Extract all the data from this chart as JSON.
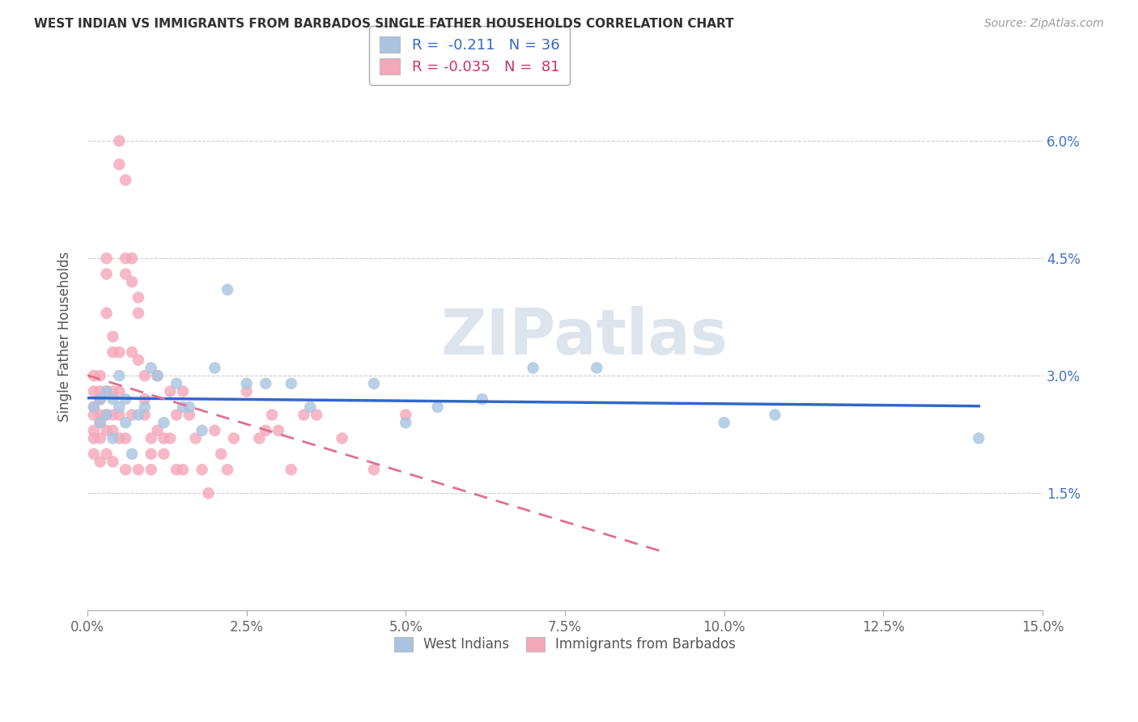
{
  "title": "WEST INDIAN VS IMMIGRANTS FROM BARBADOS SINGLE FATHER HOUSEHOLDS CORRELATION CHART",
  "source": "Source: ZipAtlas.com",
  "ylabel_label": "Single Father Households",
  "legend1_label": "West Indians",
  "legend2_label": "Immigrants from Barbados",
  "R1": -0.211,
  "N1": 36,
  "R2": -0.035,
  "N2": 81,
  "color1": "#a8c4e0",
  "color2": "#f4a7b9",
  "line1_color": "#3366cc",
  "line2_color": "#e07090",
  "xlim": [
    0.0,
    0.15
  ],
  "ylim": [
    0.0,
    0.07
  ],
  "xtick_positions": [
    0.0,
    0.025,
    0.05,
    0.075,
    0.1,
    0.125,
    0.15
  ],
  "xtick_labels": [
    "0.0%",
    "2.5%",
    "5.0%",
    "7.5%",
    "10.0%",
    "12.5%",
    "15.0%"
  ],
  "ytick_vals": [
    0.015,
    0.03,
    0.045,
    0.06
  ],
  "ytick_labels": [
    "1.5%",
    "3.0%",
    "4.5%",
    "6.0%"
  ],
  "west_indian_x": [
    0.001,
    0.002,
    0.002,
    0.003,
    0.003,
    0.004,
    0.004,
    0.005,
    0.005,
    0.006,
    0.006,
    0.007,
    0.008,
    0.009,
    0.01,
    0.011,
    0.012,
    0.014,
    0.015,
    0.016,
    0.018,
    0.02,
    0.022,
    0.025,
    0.028,
    0.032,
    0.035,
    0.045,
    0.05,
    0.055,
    0.062,
    0.07,
    0.08,
    0.1,
    0.108,
    0.14
  ],
  "west_indian_y": [
    0.026,
    0.027,
    0.024,
    0.028,
    0.025,
    0.027,
    0.022,
    0.026,
    0.03,
    0.027,
    0.024,
    0.02,
    0.025,
    0.026,
    0.031,
    0.03,
    0.024,
    0.029,
    0.026,
    0.026,
    0.023,
    0.031,
    0.041,
    0.029,
    0.029,
    0.029,
    0.026,
    0.029,
    0.024,
    0.026,
    0.027,
    0.031,
    0.031,
    0.024,
    0.025,
    0.022
  ],
  "barbados_x": [
    0.001,
    0.001,
    0.001,
    0.001,
    0.001,
    0.001,
    0.001,
    0.002,
    0.002,
    0.002,
    0.002,
    0.002,
    0.002,
    0.002,
    0.003,
    0.003,
    0.003,
    0.003,
    0.003,
    0.003,
    0.003,
    0.004,
    0.004,
    0.004,
    0.004,
    0.004,
    0.004,
    0.005,
    0.005,
    0.005,
    0.005,
    0.005,
    0.005,
    0.006,
    0.006,
    0.006,
    0.006,
    0.006,
    0.007,
    0.007,
    0.007,
    0.007,
    0.008,
    0.008,
    0.008,
    0.008,
    0.009,
    0.009,
    0.009,
    0.01,
    0.01,
    0.01,
    0.011,
    0.011,
    0.012,
    0.012,
    0.013,
    0.013,
    0.014,
    0.014,
    0.015,
    0.015,
    0.016,
    0.017,
    0.018,
    0.019,
    0.02,
    0.021,
    0.022,
    0.023,
    0.025,
    0.027,
    0.028,
    0.029,
    0.03,
    0.032,
    0.034,
    0.036,
    0.04,
    0.045,
    0.05
  ],
  "barbados_y": [
    0.026,
    0.028,
    0.022,
    0.025,
    0.03,
    0.023,
    0.02,
    0.028,
    0.025,
    0.027,
    0.022,
    0.03,
    0.024,
    0.019,
    0.045,
    0.043,
    0.038,
    0.025,
    0.028,
    0.023,
    0.02,
    0.035,
    0.033,
    0.028,
    0.025,
    0.023,
    0.019,
    0.06,
    0.057,
    0.033,
    0.028,
    0.025,
    0.022,
    0.055,
    0.045,
    0.043,
    0.022,
    0.018,
    0.045,
    0.042,
    0.033,
    0.025,
    0.04,
    0.038,
    0.032,
    0.018,
    0.03,
    0.027,
    0.025,
    0.022,
    0.02,
    0.018,
    0.03,
    0.023,
    0.022,
    0.02,
    0.028,
    0.022,
    0.025,
    0.018,
    0.028,
    0.018,
    0.025,
    0.022,
    0.018,
    0.015,
    0.023,
    0.02,
    0.018,
    0.022,
    0.028,
    0.022,
    0.023,
    0.025,
    0.023,
    0.018,
    0.025,
    0.025,
    0.022,
    0.018,
    0.025
  ]
}
